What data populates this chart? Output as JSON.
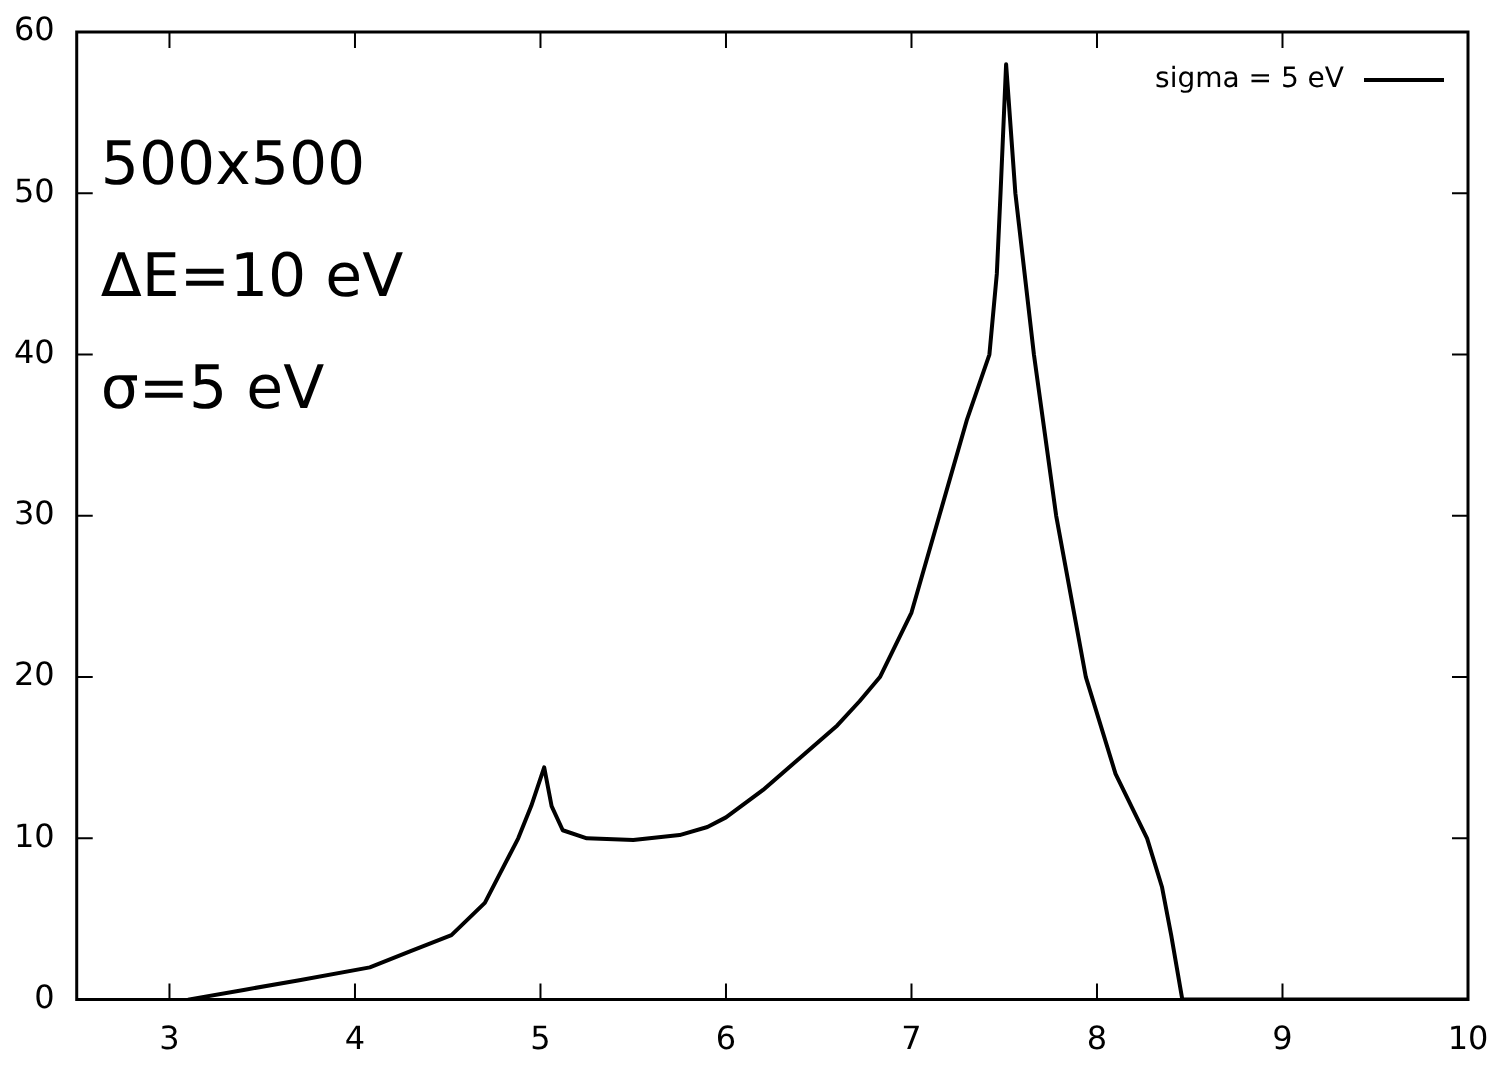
{
  "chart_data": {
    "type": "line",
    "legend": "top right",
    "marker": "none",
    "line_style": "solid",
    "xlim": [
      2.5,
      10
    ],
    "xticks": [
      3,
      4,
      5,
      6,
      7,
      8,
      9,
      10
    ],
    "ylim": [
      0,
      60
    ],
    "yticks": [
      0,
      10,
      20,
      30,
      40,
      50,
      60
    ],
    "annotations": [
      "500x500",
      "ΔE=10 eV",
      "σ=5 eV"
    ],
    "series": [
      {
        "name": "sigma = 5 eV",
        "color": "#000000",
        "x": [
          3.1,
          3.4,
          3.7,
          4.08,
          4.3,
          4.52,
          4.7,
          4.88,
          4.95,
          5.02,
          5.06,
          5.12,
          5.25,
          5.5,
          5.75,
          5.9,
          6.0,
          6.2,
          6.4,
          6.6,
          6.72,
          6.83,
          7.0,
          7.15,
          7.3,
          7.42,
          7.46,
          7.48,
          7.51,
          7.56,
          7.66,
          7.78,
          7.94,
          8.1,
          8.27,
          8.35,
          8.4,
          8.46,
          10
        ],
        "values": [
          0,
          0.6,
          1.2,
          2,
          3,
          4,
          6,
          10,
          12,
          14.4,
          12,
          10.5,
          10,
          9.9,
          10.2,
          10.7,
          11.3,
          13,
          15,
          17,
          18.5,
          20,
          24,
          30,
          36,
          40,
          45,
          50,
          58,
          50,
          40,
          30,
          20,
          14,
          10,
          7,
          4,
          0,
          0
        ]
      }
    ]
  }
}
